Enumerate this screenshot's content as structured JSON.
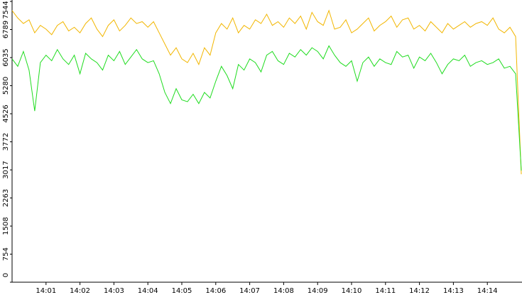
{
  "chart_data": {
    "type": "line",
    "categories": [
      null,
      null,
      null,
      null,
      null,
      null,
      "14:01",
      null,
      null,
      null,
      null,
      null,
      "14:02",
      null,
      null,
      null,
      null,
      null,
      "14:03",
      null,
      null,
      null,
      null,
      null,
      "14:04",
      null,
      null,
      null,
      null,
      null,
      "14:05",
      null,
      null,
      null,
      null,
      null,
      "14:06",
      null,
      null,
      null,
      null,
      null,
      "14:07",
      null,
      null,
      null,
      null,
      null,
      "14:08",
      null,
      null,
      null,
      null,
      null,
      "14:09",
      null,
      null,
      null,
      null,
      null,
      "14:10",
      null,
      null,
      null,
      null,
      null,
      "14:11",
      null,
      null,
      null,
      null,
      null,
      "14:12",
      null,
      null,
      null,
      null,
      null,
      "14:13",
      null,
      null,
      null,
      null,
      null,
      "14:14",
      null,
      null,
      null,
      null,
      null,
      null
    ],
    "series": [
      {
        "color": "#f2b600",
        "values": [
          7300,
          7100,
          6950,
          7050,
          6700,
          6900,
          6800,
          6650,
          6900,
          7000,
          6750,
          6850,
          6700,
          6950,
          7100,
          6800,
          6600,
          6900,
          7050,
          6750,
          6900,
          7100,
          6950,
          7000,
          6850,
          7000,
          6700,
          6400,
          6100,
          6300,
          6000,
          5900,
          6150,
          5850,
          6300,
          6100,
          6700,
          6950,
          6800,
          7100,
          6700,
          6900,
          6800,
          7050,
          6950,
          7200,
          6900,
          7000,
          6850,
          7100,
          6950,
          7150,
          6800,
          7250,
          7000,
          6900,
          7300,
          6800,
          6850,
          7050,
          6700,
          6800,
          6950,
          7100,
          6750,
          6900,
          7000,
          7150,
          6850,
          7050,
          7100,
          6800,
          6900,
          6750,
          7000,
          6850,
          6700,
          6950,
          6800,
          6900,
          7000,
          6850,
          6950,
          7000,
          6900,
          7100,
          6800,
          6700,
          6850,
          6600,
          2900
        ]
      },
      {
        "color": "#1fdc1f",
        "values": [
          6000,
          5800,
          6200,
          5700,
          4600,
          5900,
          6100,
          5950,
          6250,
          6000,
          5850,
          6100,
          5600,
          6150,
          6000,
          5900,
          5700,
          6100,
          5950,
          6200,
          5850,
          6050,
          6250,
          6000,
          5900,
          5950,
          5600,
          5100,
          4800,
          5200,
          4900,
          4850,
          5050,
          4800,
          5100,
          4950,
          5400,
          5800,
          5550,
          5200,
          5850,
          5700,
          6000,
          5900,
          5650,
          6100,
          6200,
          5950,
          5850,
          6150,
          6050,
          6250,
          6100,
          6300,
          6200,
          6000,
          6350,
          6100,
          5900,
          5800,
          5950,
          5400,
          5900,
          6050,
          5800,
          6000,
          5900,
          5850,
          6200,
          6050,
          6100,
          5750,
          6050,
          5950,
          6150,
          5900,
          5600,
          5850,
          6000,
          5950,
          6100,
          5800,
          5900,
          5950,
          5850,
          5900,
          6000,
          5750,
          5800,
          5600,
          3000
        ]
      }
    ],
    "ylim": [
      0,
      7544
    ],
    "yticks": [
      0,
      754,
      1508,
      2263,
      3017,
      3772,
      4526,
      5280,
      6035,
      6789,
      7544
    ]
  }
}
